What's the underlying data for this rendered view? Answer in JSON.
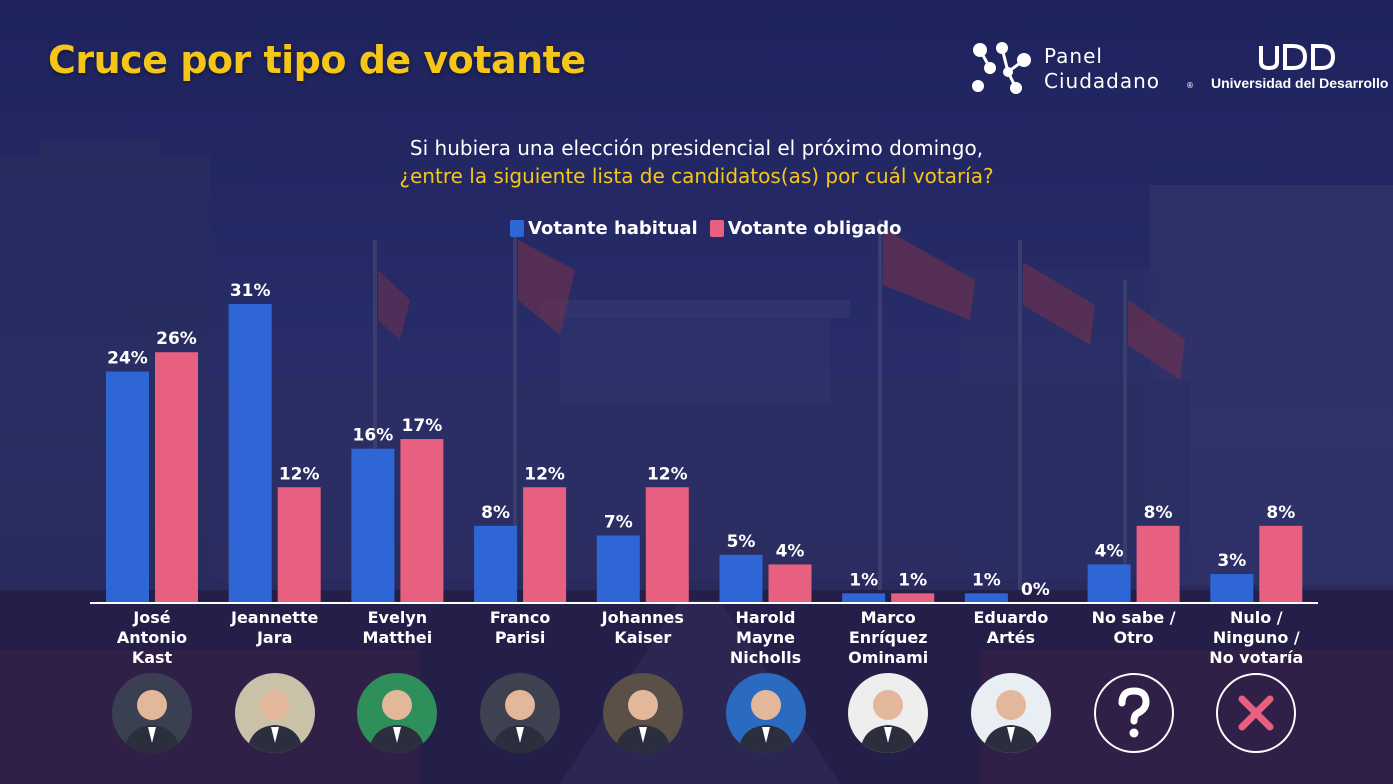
{
  "header": {
    "title": "Cruce por tipo de votante"
  },
  "logos": {
    "panel_line1": "Panel",
    "panel_line2": "Ciudadano",
    "panel_reg": "®",
    "udd_mark": "UDD",
    "udd_name": "Universidad del Desarrollo"
  },
  "question": {
    "line1": "Si hubiera una elección presidencial el próximo domingo,",
    "line2": "¿entre la siguiente lista de candidatos(as) por cuál votaría?"
  },
  "colors": {
    "title": "#f5c518",
    "series_habitual": "#2f66d6",
    "series_obligado": "#e8607f",
    "background": "#22265e"
  },
  "chart_data": {
    "type": "bar",
    "categories": [
      [
        "José",
        "Antonio",
        "Kast"
      ],
      [
        "Jeannette",
        "Jara"
      ],
      [
        "Evelyn",
        "Matthei"
      ],
      [
        "Franco",
        "Parisi"
      ],
      [
        "Johannes",
        "Kaiser"
      ],
      [
        "Harold",
        "Mayne",
        "Nicholls"
      ],
      [
        "Marco",
        "Enríquez",
        "Ominami"
      ],
      [
        "Eduardo",
        "Artés"
      ],
      [
        "No sabe /",
        "Otro"
      ],
      [
        "Nulo /",
        "Ninguno /",
        "No votaría"
      ]
    ],
    "series": [
      {
        "name": "Votante habitual",
        "values": [
          24,
          31,
          16,
          8,
          7,
          5,
          1,
          1,
          4,
          3
        ],
        "labels": [
          "24%",
          "31%",
          "16%",
          "8%",
          "7%",
          "5%",
          "1%",
          "1%",
          "4%",
          "3%"
        ]
      },
      {
        "name": "Votante obligado",
        "values": [
          26,
          12,
          17,
          12,
          12,
          4,
          1,
          0,
          8,
          8
        ],
        "labels": [
          "26%",
          "12%",
          "17%",
          "12%",
          "12%",
          "4%",
          "1%",
          "0%",
          "8%",
          "8%"
        ]
      }
    ],
    "ylim": [
      0,
      31
    ],
    "legend": "top-center",
    "grid": false
  },
  "avatars": [
    {
      "icon": "person-photo",
      "tone": "#3a3f52"
    },
    {
      "icon": "person-photo",
      "tone": "#c9c2a8"
    },
    {
      "icon": "person-photo",
      "tone": "#2f8f5a"
    },
    {
      "icon": "person-photo",
      "tone": "#3d4150"
    },
    {
      "icon": "person-photo",
      "tone": "#5a5048"
    },
    {
      "icon": "person-photo",
      "tone": "#2a6ac0"
    },
    {
      "icon": "person-photo",
      "tone": "#eeeeee"
    },
    {
      "icon": "person-photo",
      "tone": "#e9eef2"
    },
    {
      "icon": "question-icon",
      "tone": "#ffffff"
    },
    {
      "icon": "x-icon",
      "tone": "#e8607f"
    }
  ]
}
